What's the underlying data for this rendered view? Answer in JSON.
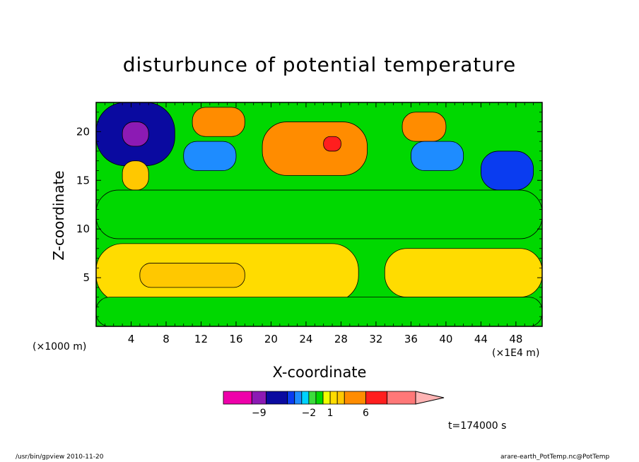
{
  "chart_data": {
    "type": "heatmap",
    "title": "disturbunce of potential temperature",
    "xlabel": "X-coordinate",
    "ylabel": "Z-coordinate",
    "x_unit_label": "(×1E4 m)",
    "z_unit_label": "(×1000 m)",
    "xlim": [
      0,
      51
    ],
    "ylim": [
      0,
      23
    ],
    "x_ticks": [
      4,
      8,
      12,
      16,
      20,
      24,
      28,
      32,
      36,
      40,
      44,
      48
    ],
    "y_ticks": [
      5,
      10,
      15,
      20
    ],
    "time_label": "t=174000 s",
    "colorbar": {
      "labels": [
        {
          "text": "−9",
          "at": -9
        },
        {
          "text": "−2",
          "at": -2
        },
        {
          "text": "1",
          "at": 1
        },
        {
          "text": "6",
          "at": 6
        }
      ],
      "bins": [
        {
          "from": -14,
          "to": -10,
          "color": "#ee00aa"
        },
        {
          "from": -10,
          "to": -8,
          "color": "#8c1ab4"
        },
        {
          "from": -8,
          "to": -5,
          "color": "#0a0aa0"
        },
        {
          "from": -5,
          "to": -4,
          "color": "#0a3cf0"
        },
        {
          "from": -4,
          "to": -3,
          "color": "#1e8cff"
        },
        {
          "from": -3,
          "to": -2,
          "color": "#00d2ff"
        },
        {
          "from": -2,
          "to": -1,
          "color": "#3cdc3c"
        },
        {
          "from": -1,
          "to": 0,
          "color": "#00d800"
        },
        {
          "from": 0,
          "to": 1,
          "color": "#f0ff00"
        },
        {
          "from": 1,
          "to": 2,
          "color": "#ffdc00"
        },
        {
          "from": 2,
          "to": 3,
          "color": "#ffc800"
        },
        {
          "from": 3,
          "to": 6,
          "color": "#ff8c00"
        },
        {
          "from": 6,
          "to": 9,
          "color": "#ff1e1e"
        },
        {
          "from": 9,
          "to": 13,
          "color": "#ff7878"
        },
        {
          "from": 13,
          "to": 17,
          "color": "#ffb4b4"
        }
      ]
    },
    "regions": [
      {
        "name": "upper-negative-left",
        "x": [
          0,
          9
        ],
        "z": [
          16.5,
          23
        ],
        "value": -6
      },
      {
        "name": "core-minimum",
        "x": [
          3,
          6
        ],
        "z": [
          18.5,
          21
        ],
        "value": -9
      },
      {
        "name": "blue-band-10-16",
        "x": [
          10,
          16
        ],
        "z": [
          16,
          19
        ],
        "value": -4
      },
      {
        "name": "positive-upper-13-17",
        "x": [
          11,
          17
        ],
        "z": [
          19.5,
          22.5
        ],
        "value": 3
      },
      {
        "name": "positive-upper-20-31",
        "x": [
          19,
          31
        ],
        "z": [
          15.5,
          21
        ],
        "value": 4
      },
      {
        "name": "peak-maximum",
        "x": [
          26,
          28
        ],
        "z": [
          18,
          19.5
        ],
        "value": 7
      },
      {
        "name": "positive-upper-36-40",
        "x": [
          35,
          40
        ],
        "z": [
          19,
          22
        ],
        "value": 3
      },
      {
        "name": "negative-upper-37-42",
        "x": [
          36,
          42
        ],
        "z": [
          16,
          19
        ],
        "value": -4
      },
      {
        "name": "negative-upper-45-49",
        "x": [
          44,
          50
        ],
        "z": [
          14,
          18
        ],
        "value": -5
      },
      {
        "name": "positive-small-3-6",
        "x": [
          3,
          6
        ],
        "z": [
          14,
          17
        ],
        "value": 2
      },
      {
        "name": "green-band",
        "x": [
          0,
          51
        ],
        "z": [
          9,
          14
        ],
        "value": -0.5
      },
      {
        "name": "yellow-low-left",
        "x": [
          0,
          30
        ],
        "z": [
          2.5,
          8.5
        ],
        "value": 1
      },
      {
        "name": "orange-low-left",
        "x": [
          5,
          17
        ],
        "z": [
          4,
          6.5
        ],
        "value": 2.5
      },
      {
        "name": "yellow-low-right",
        "x": [
          33,
          51
        ],
        "z": [
          3,
          8
        ],
        "value": 1.5
      },
      {
        "name": "green-bottom",
        "x": [
          0,
          51
        ],
        "z": [
          0,
          3
        ],
        "value": -0.5
      }
    ]
  },
  "footer": {
    "left": "/usr/bin/gpview   2010-11-20",
    "right": "arare-earth_PotTemp.nc@PotTemp"
  }
}
